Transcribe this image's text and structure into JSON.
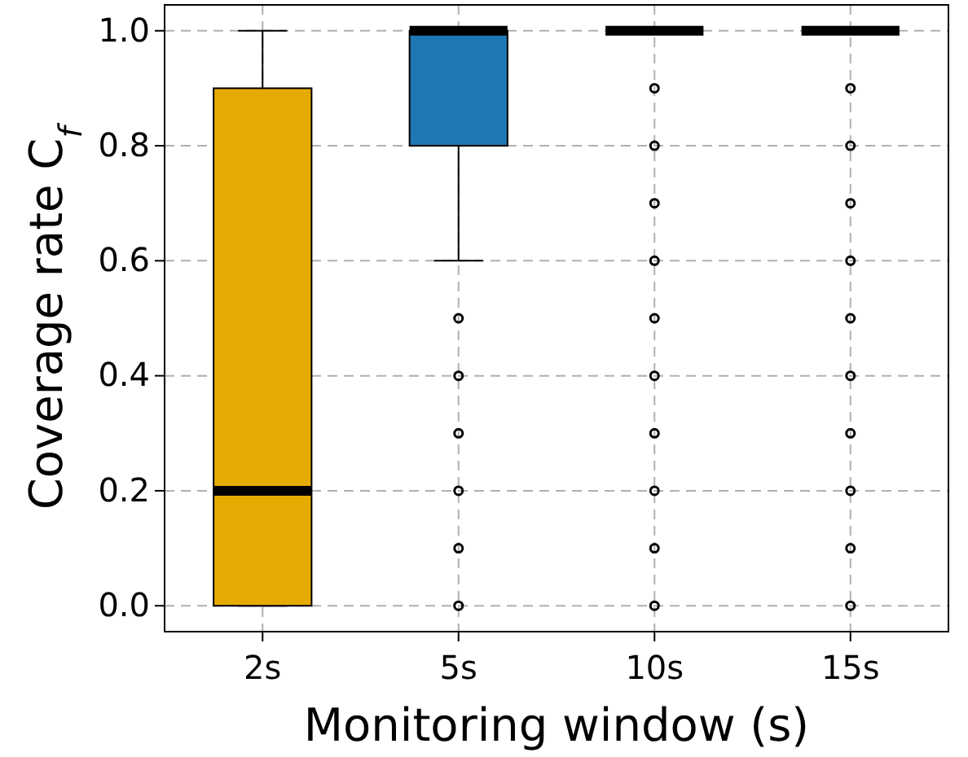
{
  "chart_data": {
    "type": "box",
    "xlabel": "Monitoring window (s)",
    "ylabel": "Coverage rate C$_{f}$",
    "categories": [
      "2s",
      "5s",
      "10s",
      "15s"
    ],
    "colors": [
      "#e6ab02",
      "#1f77b4",
      null,
      null
    ],
    "boxes": [
      {
        "low": 0,
        "q1": 0,
        "median": 0.2,
        "q3": 0.9,
        "high": 1.0
      },
      {
        "low": 0.6,
        "q1": 0.8,
        "median": 1.0,
        "q3": 1.0,
        "high": 1.0,
        "outliers": [
          0.5,
          0.4,
          0.3,
          0.2,
          0.1,
          0
        ]
      },
      {
        "low": 1.0,
        "q1": 1.0,
        "median": 1.0,
        "q3": 1.0,
        "high": 1.0,
        "outliers": [
          0.9,
          0.8,
          0.7,
          0.6,
          0.5,
          0.4,
          0.3,
          0.2,
          0.1,
          0
        ]
      },
      {
        "low": 1.0,
        "q1": 1.0,
        "median": 1.0,
        "q3": 1.0,
        "high": 1.0,
        "outliers": [
          0.9,
          0.8,
          0.7,
          0.6,
          0.5,
          0.4,
          0.3,
          0.2,
          0.1,
          0
        ]
      }
    ],
    "ylim": [
      -0.045,
      1.045
    ],
    "yticks": [
      {
        "value": 0,
        "label": "0.0"
      },
      {
        "value": 0.2,
        "label": "0.2"
      },
      {
        "value": 0.4,
        "label": "0.4"
      },
      {
        "value": 0.6,
        "label": "0.6"
      },
      {
        "value": 0.8,
        "label": "0.8"
      },
      {
        "value": 1,
        "label": "1.0"
      }
    ],
    "grid": true
  }
}
